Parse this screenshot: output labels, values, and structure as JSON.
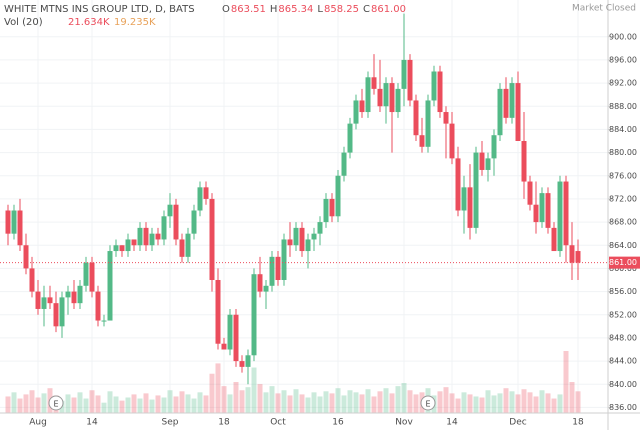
{
  "chart_data": {
    "type": "candlestick",
    "title": "WHITE MTNS INS GROUP LTD, D, BATS",
    "ohlc_header": [
      {
        "key": "O",
        "value": "863.51"
      },
      {
        "key": "H",
        "value": "865.34"
      },
      {
        "key": "L",
        "value": "858.25"
      },
      {
        "key": "C",
        "value": "861.00"
      }
    ],
    "volume_header": {
      "name": "Vol (20)",
      "values": [
        "21.634K",
        "19.235K"
      ]
    },
    "status": "Market Closed",
    "up_color": "#53b987",
    "down_color": "#eb4d5c",
    "last_price": {
      "value": 861,
      "label": "861.00"
    },
    "events": [
      {
        "index": 8,
        "label": "E"
      },
      {
        "index": 70,
        "label": "E"
      }
    ],
    "categories": [
      null,
      null,
      null,
      null,
      null,
      "Aug",
      null,
      null,
      null,
      null,
      null,
      null,
      null,
      null,
      "14",
      null,
      null,
      null,
      null,
      null,
      null,
      null,
      null,
      null,
      null,
      null,
      null,
      "Sep",
      null,
      null,
      null,
      null,
      null,
      null,
      null,
      null,
      "18",
      null,
      null,
      null,
      null,
      null,
      null,
      null,
      null,
      "Oct",
      null,
      null,
      null,
      null,
      null,
      null,
      null,
      null,
      null,
      "16",
      null,
      null,
      null,
      null,
      null,
      null,
      null,
      null,
      null,
      null,
      "Nov",
      null,
      null,
      null,
      null,
      null,
      null,
      null,
      "14",
      null,
      null,
      null,
      null,
      null,
      null,
      null,
      null,
      null,
      null,
      "Dec",
      null,
      null,
      null,
      null,
      null,
      null,
      null,
      null,
      null,
      "18"
    ],
    "ohlc": [
      [
        870,
        871,
        864,
        866
      ],
      [
        866,
        871,
        865,
        870
      ],
      [
        870,
        872,
        863,
        864
      ],
      [
        864,
        866,
        859,
        860
      ],
      [
        860,
        862,
        855,
        856
      ],
      [
        856,
        858,
        852,
        853
      ],
      [
        853,
        857,
        850,
        855
      ],
      [
        855,
        857,
        853,
        854
      ],
      [
        854,
        856,
        849,
        850
      ],
      [
        850,
        856,
        848,
        855
      ],
      [
        855,
        857,
        852,
        856
      ],
      [
        856,
        858,
        853,
        854
      ],
      [
        854,
        858,
        853,
        857
      ],
      [
        857,
        862,
        856,
        861
      ],
      [
        861,
        862,
        855,
        856
      ],
      [
        856,
        857,
        850,
        851
      ],
      [
        851,
        852,
        850,
        851
      ],
      [
        851,
        864,
        851,
        863
      ],
      [
        863,
        865,
        862,
        864
      ],
      [
        864,
        864,
        862,
        863
      ],
      [
        863,
        866,
        862,
        865
      ],
      [
        865,
        865,
        863,
        864
      ],
      [
        864,
        868,
        863,
        867
      ],
      [
        867,
        868,
        863,
        864
      ],
      [
        864,
        867,
        863,
        866
      ],
      [
        866,
        867,
        864,
        865
      ],
      [
        865,
        870,
        864,
        869
      ],
      [
        869,
        873,
        867,
        871
      ],
      [
        871,
        872,
        864,
        865
      ],
      [
        865,
        866,
        861,
        862
      ],
      [
        862,
        867,
        861,
        866
      ],
      [
        866,
        871,
        865,
        870
      ],
      [
        870,
        875,
        869,
        874
      ],
      [
        874,
        875,
        871,
        872
      ],
      [
        872,
        873,
        856,
        858
      ],
      [
        858,
        860,
        846,
        847
      ],
      [
        847,
        848,
        846,
        846
      ],
      [
        846,
        853,
        845,
        852
      ],
      [
        852,
        853,
        843,
        844
      ],
      [
        844,
        845,
        842,
        843
      ],
      [
        843,
        846,
        840,
        845
      ],
      [
        845,
        860,
        844,
        859
      ],
      [
        859,
        862,
        855,
        856
      ],
      [
        856,
        858,
        853,
        857
      ],
      [
        857,
        863,
        856,
        862
      ],
      [
        862,
        863,
        857,
        858
      ],
      [
        858,
        866,
        857,
        865
      ],
      [
        865,
        868,
        862,
        864
      ],
      [
        864,
        868,
        863,
        867
      ],
      [
        867,
        868,
        862,
        863
      ],
      [
        863,
        866,
        860,
        865
      ],
      [
        865,
        867,
        863,
        866
      ],
      [
        866,
        869,
        864,
        868
      ],
      [
        868,
        873,
        867,
        872
      ],
      [
        872,
        873,
        868,
        869
      ],
      [
        869,
        877,
        868,
        876
      ],
      [
        876,
        881,
        875,
        880
      ],
      [
        880,
        886,
        879,
        885
      ],
      [
        885,
        890,
        884,
        889
      ],
      [
        889,
        891,
        886,
        887
      ],
      [
        887,
        894,
        886,
        893
      ],
      [
        893,
        897,
        890,
        891
      ],
      [
        891,
        896,
        887,
        888
      ],
      [
        888,
        893,
        885,
        892
      ],
      [
        892,
        893,
        880,
        887
      ],
      [
        887,
        892,
        886,
        891
      ],
      [
        891,
        904,
        888,
        896
      ],
      [
        896,
        897,
        888,
        889
      ],
      [
        889,
        890,
        882,
        883
      ],
      [
        883,
        886,
        880,
        881
      ],
      [
        881,
        890,
        880,
        889
      ],
      [
        889,
        895,
        888,
        894
      ],
      [
        894,
        895,
        886,
        887
      ],
      [
        887,
        888,
        879,
        885
      ],
      [
        885,
        887,
        878,
        879
      ],
      [
        879,
        881,
        869,
        870
      ],
      [
        870,
        876,
        866,
        874
      ],
      [
        874,
        878,
        865,
        867
      ],
      [
        867,
        881,
        866,
        880
      ],
      [
        880,
        882,
        876,
        877
      ],
      [
        877,
        880,
        875,
        879
      ],
      [
        879,
        884,
        876,
        883
      ],
      [
        883,
        892,
        882,
        891
      ],
      [
        891,
        893,
        885,
        886
      ],
      [
        886,
        893,
        885,
        892
      ],
      [
        892,
        894,
        882,
        882
      ],
      [
        882,
        887,
        872,
        875
      ],
      [
        875,
        876,
        870,
        871
      ],
      [
        871,
        875,
        866,
        868
      ],
      [
        868,
        874,
        867,
        873
      ],
      [
        873,
        874,
        866,
        867
      ],
      [
        867,
        868,
        863,
        863
      ],
      [
        863,
        876,
        862,
        875
      ],
      [
        875,
        876,
        861,
        864
      ],
      [
        864,
        868,
        858,
        861
      ],
      [
        863,
        865,
        858,
        861
      ]
    ],
    "volume": [
      16,
      20,
      14,
      18,
      22,
      15,
      19,
      24,
      17,
      12,
      18,
      15,
      20,
      14,
      22,
      17,
      10,
      21,
      16,
      12,
      15,
      18,
      14,
      19,
      13,
      17,
      15,
      22,
      16,
      21,
      18,
      14,
      20,
      17,
      38,
      48,
      26,
      18,
      30,
      22,
      25,
      44,
      28,
      20,
      26,
      19,
      22,
      17,
      23,
      18,
      15,
      20,
      16,
      21,
      19,
      24,
      17,
      22,
      20,
      18,
      23,
      16,
      21,
      24,
      19,
      26,
      29,
      22,
      18,
      20,
      24,
      17,
      21,
      25,
      19,
      14,
      20,
      18,
      16,
      15,
      22,
      17,
      19,
      24,
      21,
      18,
      23,
      20,
      16,
      22,
      19,
      14,
      18,
      60,
      30,
      21
    ],
    "ylim": [
      834,
      906
    ],
    "yticks": [
      {
        "value": 836,
        "label": "836.00"
      },
      {
        "value": 840,
        "label": "840.00"
      },
      {
        "value": 844,
        "label": "844.00"
      },
      {
        "value": 848,
        "label": "848.00"
      },
      {
        "value": 852,
        "label": "852.00"
      },
      {
        "value": 856,
        "label": "856.00"
      },
      {
        "value": 860,
        "label": "860.00"
      },
      {
        "value": 864,
        "label": "864.00"
      },
      {
        "value": 868,
        "label": "868.00"
      },
      {
        "value": 872,
        "label": "872.00"
      },
      {
        "value": 876,
        "label": "876.00"
      },
      {
        "value": 880,
        "label": "880.00"
      },
      {
        "value": 884,
        "label": "884.00"
      },
      {
        "value": 888,
        "label": "888.00"
      },
      {
        "value": 892,
        "label": "892.00"
      },
      {
        "value": 896,
        "label": "896.00"
      },
      {
        "value": 900,
        "label": "900.00"
      }
    ],
    "grid": true
  }
}
